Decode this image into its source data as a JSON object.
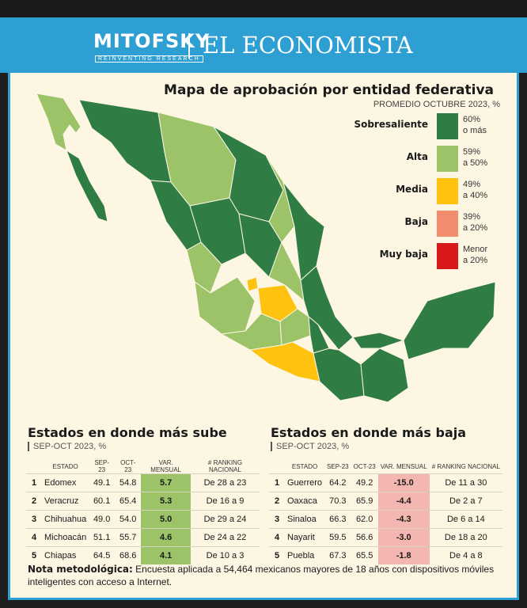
{
  "header": {
    "logo_left": "MITOFSKY",
    "logo_left_tagline": "REINVENTING RESEARCH",
    "logo_right": "EL ECONOMISTA"
  },
  "map": {
    "title": "Mapa de aprobación por entidad federativa",
    "subtitle": "PROMEDIO OCTUBRE 2023, %",
    "legend": [
      {
        "label": "Sobresaliente",
        "range_1": "60%",
        "range_2": "o más",
        "color": "#2f7d45"
      },
      {
        "label": "Alta",
        "range_1": "59%",
        "range_2": "a 50%",
        "color": "#9cc368"
      },
      {
        "label": "Media",
        "range_1": "49%",
        "range_2": "a 40%",
        "color": "#ffc20e"
      },
      {
        "label": "Baja",
        "range_1": "39%",
        "range_2": "a 20%",
        "color": "#f28c6e"
      },
      {
        "label": "Muy baja",
        "range_1": "Menor",
        "range_2": "a 20%",
        "color": "#d7191c"
      }
    ]
  },
  "sube": {
    "title": "Estados en donde más sube",
    "subtitle": "SEP-OCT 2023, %",
    "columns": [
      "ESTADO",
      "SEP-23",
      "OCT-23",
      "VAR. MENSUAL",
      "# RANKING NACIONAL"
    ],
    "rows": [
      {
        "rank": "1",
        "estado": "Edomex",
        "sep": "49.1",
        "oct": "54.8",
        "var": "5.7",
        "ranking": "De 28 a 23"
      },
      {
        "rank": "2",
        "estado": "Veracruz",
        "sep": "60.1",
        "oct": "65.4",
        "var": "5.3",
        "ranking": "De 16 a 9"
      },
      {
        "rank": "3",
        "estado": "Chihuahua",
        "sep": "49.0",
        "oct": "54.0",
        "var": "5.0",
        "ranking": "De 29 a 24"
      },
      {
        "rank": "4",
        "estado": "Michoacán",
        "sep": "51.1",
        "oct": "55.7",
        "var": "4.6",
        "ranking": "De 24 a 22"
      },
      {
        "rank": "5",
        "estado": "Chiapas",
        "sep": "64.5",
        "oct": "68.6",
        "var": "4.1",
        "ranking": "De 10 a 3"
      }
    ]
  },
  "baja": {
    "title": "Estados en donde más baja",
    "subtitle": "SEP-OCT 2023, %",
    "columns": [
      "ESTADO",
      "SEP-23",
      "OCT-23",
      "VAR. MENSUAL",
      "# RANKING NACIONAL"
    ],
    "rows": [
      {
        "rank": "1",
        "estado": "Guerrero",
        "sep": "64.2",
        "oct": "49.2",
        "var": "-15.0",
        "ranking": "De 11 a 30"
      },
      {
        "rank": "2",
        "estado": "Oaxaca",
        "sep": "70.3",
        "oct": "65.9",
        "var": "-4.4",
        "ranking": "De 2 a 7"
      },
      {
        "rank": "3",
        "estado": "Sinaloa",
        "sep": "66.3",
        "oct": "62.0",
        "var": "-4.3",
        "ranking": "De 6 a 14"
      },
      {
        "rank": "4",
        "estado": "Nayarit",
        "sep": "59.5",
        "oct": "56.6",
        "var": "-3.0",
        "ranking": "De 18 a 20"
      },
      {
        "rank": "5",
        "estado": "Puebla",
        "sep": "67.3",
        "oct": "65.5",
        "var": "-1.8",
        "ranking": "De 4 a 8"
      }
    ]
  },
  "nota": {
    "label": "Nota metodológica:",
    "text": "Encuesta aplicada a 54,464 mexicanos mayores de 18 años con dispositivos móviles inteligentes con acceso a Internet."
  },
  "colors": {
    "header_blue": "#2e9fd3",
    "sube_highlight": "#9cc368",
    "baja_highlight": "#f4b6b0"
  }
}
